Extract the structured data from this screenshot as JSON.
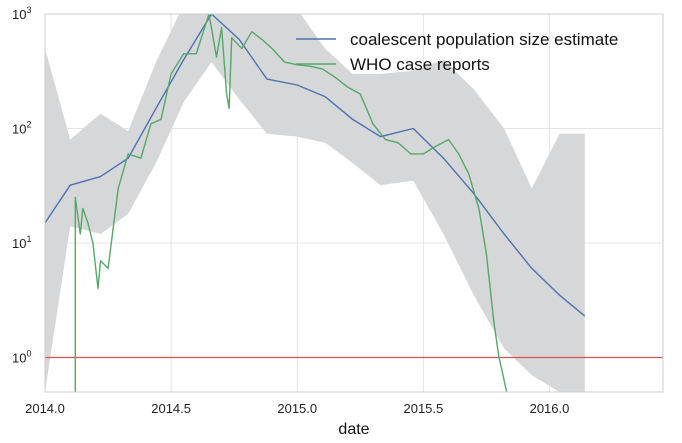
{
  "chart_data": {
    "type": "line",
    "xlabel": "date",
    "ylabel": "",
    "yscale": "log",
    "xlim": [
      2014.0,
      2016.45
    ],
    "ylim": [
      0.5,
      1000
    ],
    "x_ticks": [
      2014.0,
      2014.5,
      2015.0,
      2015.5,
      2016.0
    ],
    "x_tick_labels": [
      "2014.0",
      "2014.5",
      "2015.0",
      "2015.5",
      "2016.0"
    ],
    "y_ticks": [
      1,
      10,
      100,
      1000
    ],
    "y_tick_labels": [
      {
        "base": "10",
        "exp": "0"
      },
      {
        "base": "10",
        "exp": "1"
      },
      {
        "base": "10",
        "exp": "2"
      },
      {
        "base": "10",
        "exp": "3"
      }
    ],
    "grid": true,
    "legend_position": "top-right",
    "reference_line": {
      "y": 1,
      "color": "#d9534f"
    },
    "colors": {
      "estimate": "#4c72b0",
      "reports": "#55a868",
      "band": "#d6d7d9"
    },
    "series": [
      {
        "name": "coalescent population size estimate",
        "x": [
          2014.0,
          2014.1,
          2014.22,
          2014.33,
          2014.44,
          2014.55,
          2014.66,
          2014.77,
          2014.88,
          2015.0,
          2015.11,
          2015.22,
          2015.33,
          2015.46,
          2015.58,
          2015.7,
          2015.82,
          2015.93,
          2016.04,
          2016.14
        ],
        "y": [
          15,
          32,
          38,
          55,
          150,
          400,
          1000,
          600,
          270,
          240,
          190,
          120,
          85,
          100,
          55,
          27,
          12,
          6,
          3.5,
          2.3
        ]
      },
      {
        "name": "WHO case reports",
        "x": [
          2014.12,
          2014.12,
          2014.14,
          2014.15,
          2014.17,
          2014.19,
          2014.21,
          2014.22,
          2014.25,
          2014.29,
          2014.33,
          2014.38,
          2014.42,
          2014.46,
          2014.5,
          2014.55,
          2014.6,
          2014.65,
          2014.68,
          2014.7,
          2014.72,
          2014.73,
          2014.74,
          2014.78,
          2014.82,
          2014.86,
          2014.9,
          2014.95,
          2015.0,
          2015.05,
          2015.1,
          2015.15,
          2015.2,
          2015.25,
          2015.3,
          2015.35,
          2015.4,
          2015.45,
          2015.5,
          2015.55,
          2015.6,
          2015.64,
          2015.68,
          2015.72,
          2015.75,
          2015.78,
          2015.8,
          2015.81,
          2015.83
        ],
        "y": [
          0.5,
          25,
          12,
          20,
          15,
          10,
          4,
          7,
          6,
          30,
          60,
          55,
          110,
          120,
          300,
          450,
          450,
          1000,
          420,
          760,
          200,
          150,
          620,
          500,
          700,
          600,
          500,
          380,
          360,
          350,
          330,
          280,
          230,
          200,
          110,
          80,
          75,
          60,
          60,
          70,
          80,
          60,
          40,
          20,
          8,
          2,
          1,
          0.8,
          0.5
        ]
      }
    ],
    "confidence_band": {
      "x": [
        2014.0,
        2014.1,
        2014.22,
        2014.33,
        2014.44,
        2014.55,
        2014.66,
        2014.77,
        2014.88,
        2015.0,
        2015.11,
        2015.22,
        2015.33,
        2015.46,
        2015.58,
        2015.7,
        2015.82,
        2015.93,
        2016.04,
        2016.14
      ],
      "upper": [
        500,
        80,
        135,
        95,
        380,
        1200,
        3000,
        2400,
        1000,
        1100,
        500,
        300,
        300,
        320,
        400,
        220,
        100,
        30,
        90,
        90
      ],
      "lower": [
        0.5,
        14,
        12,
        18,
        50,
        170,
        380,
        180,
        90,
        85,
        75,
        50,
        32,
        35,
        12,
        3.5,
        1.2,
        0.7,
        0.5,
        0.5
      ]
    }
  }
}
